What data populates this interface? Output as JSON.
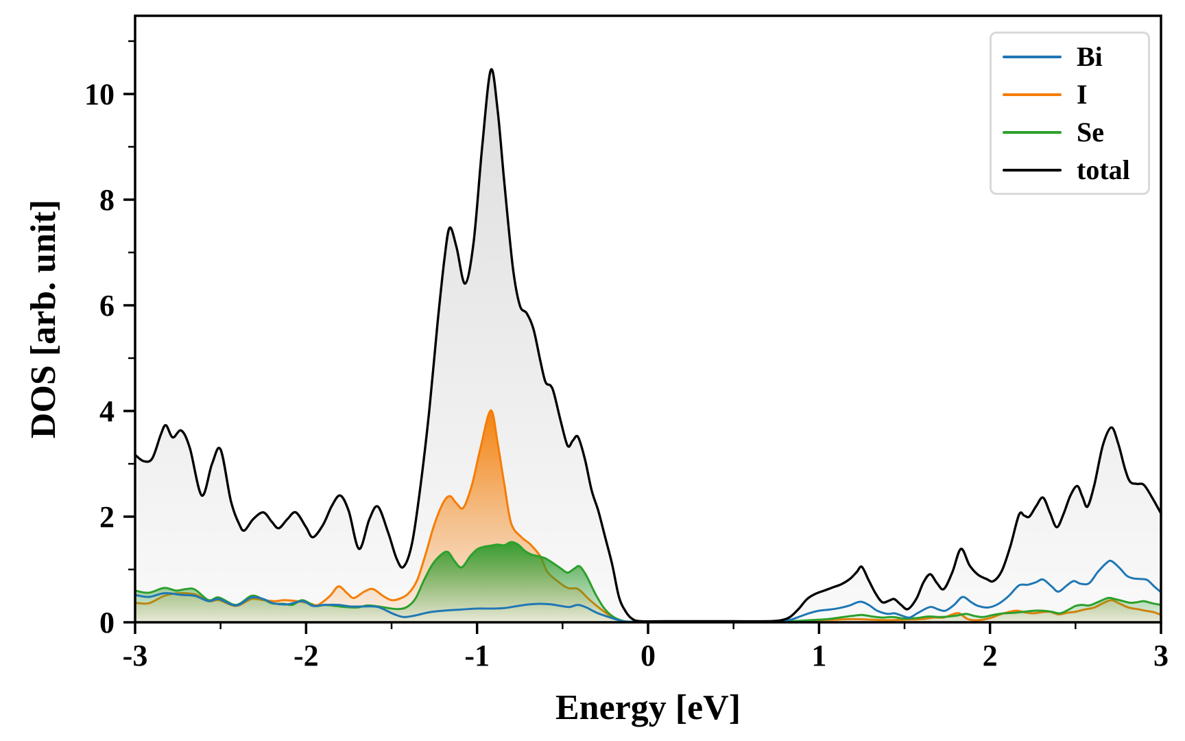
{
  "figure_title": "",
  "axes": {
    "xlabel": "Energy [eV]",
    "ylabel": "DOS [arb. unit]",
    "x_tick_labels": [
      "-3",
      "-2",
      "-1",
      "0",
      "1",
      "2",
      "3"
    ],
    "x_tick_values": [
      -3,
      -2,
      -1,
      0,
      1,
      2,
      3
    ],
    "x_minor_tick_values": [
      -2.5,
      -1.5,
      -0.5,
      0.5,
      1.5,
      2.5
    ],
    "y_tick_labels": [
      "0",
      "2",
      "4",
      "6",
      "8",
      "10"
    ],
    "y_tick_values": [
      0,
      2,
      4,
      6,
      8,
      10
    ],
    "y_minor_tick_values": [
      1,
      3,
      5,
      7,
      9,
      11
    ]
  },
  "legend": {
    "items": [
      {
        "label": "Bi",
        "color": "#1f77b4"
      },
      {
        "label": "I",
        "color": "#f57d05"
      },
      {
        "label": "Se",
        "color": "#2ca02c"
      },
      {
        "label": "total",
        "color": "#000000"
      }
    ]
  },
  "chart_data": {
    "type": "line",
    "title": "",
    "xlabel": "Energy [eV]",
    "ylabel": "DOS [arb. unit]",
    "xlim": [
      -3,
      3
    ],
    "ylim": [
      0,
      11.48
    ],
    "grid": false,
    "legend_position": "upper right",
    "series": [
      {
        "name": "Bi",
        "color": "#1f77b4",
        "fill": false,
        "x": [
          -3.0,
          -2.92,
          -2.83,
          -2.73,
          -2.65,
          -2.57,
          -2.51,
          -2.41,
          -2.32,
          -2.25,
          -2.19,
          -2.11,
          -2.02,
          -1.96,
          -1.89,
          -1.81,
          -1.74,
          -1.66,
          -1.58,
          -1.49,
          -1.43,
          -1.36,
          -1.28,
          -1.2,
          -1.1,
          -1.0,
          -0.92,
          -0.84,
          -0.76,
          -0.69,
          -0.63,
          -0.57,
          -0.51,
          -0.46,
          -0.41,
          -0.36,
          -0.3,
          -0.23,
          -0.16,
          -0.09,
          0.1,
          0.4,
          0.7,
          0.82,
          0.88,
          0.94,
          1.0,
          1.06,
          1.12,
          1.18,
          1.24,
          1.29,
          1.34,
          1.4,
          1.44,
          1.49,
          1.53,
          1.58,
          1.65,
          1.7,
          1.74,
          1.79,
          1.84,
          1.89,
          1.93,
          1.99,
          2.05,
          2.11,
          2.17,
          2.22,
          2.27,
          2.31,
          2.36,
          2.4,
          2.45,
          2.49,
          2.53,
          2.58,
          2.63,
          2.68,
          2.71,
          2.76,
          2.8,
          2.84,
          2.88,
          2.92,
          2.96,
          3.0
        ],
        "y": [
          0.52,
          0.48,
          0.55,
          0.52,
          0.5,
          0.4,
          0.44,
          0.32,
          0.47,
          0.44,
          0.36,
          0.34,
          0.4,
          0.31,
          0.33,
          0.33,
          0.3,
          0.3,
          0.29,
          0.16,
          0.1,
          0.13,
          0.19,
          0.22,
          0.24,
          0.26,
          0.26,
          0.27,
          0.31,
          0.34,
          0.35,
          0.34,
          0.31,
          0.29,
          0.33,
          0.28,
          0.18,
          0.1,
          0.03,
          0.01,
          0.01,
          0.01,
          0.01,
          0.04,
          0.1,
          0.17,
          0.22,
          0.24,
          0.27,
          0.32,
          0.39,
          0.33,
          0.22,
          0.16,
          0.17,
          0.12,
          0.09,
          0.18,
          0.29,
          0.24,
          0.22,
          0.33,
          0.48,
          0.38,
          0.31,
          0.28,
          0.35,
          0.5,
          0.7,
          0.71,
          0.76,
          0.81,
          0.68,
          0.58,
          0.7,
          0.78,
          0.73,
          0.74,
          0.95,
          1.12,
          1.16,
          1.02,
          0.88,
          0.83,
          0.82,
          0.8,
          0.68,
          0.57
        ]
      },
      {
        "name": "I",
        "color": "#f57d05",
        "fill": true,
        "x": [
          -3.0,
          -2.92,
          -2.83,
          -2.75,
          -2.65,
          -2.57,
          -2.51,
          -2.41,
          -2.32,
          -2.25,
          -2.18,
          -2.13,
          -2.05,
          -1.98,
          -1.93,
          -1.86,
          -1.81,
          -1.76,
          -1.72,
          -1.66,
          -1.61,
          -1.55,
          -1.5,
          -1.45,
          -1.4,
          -1.35,
          -1.3,
          -1.25,
          -1.2,
          -1.16,
          -1.12,
          -1.08,
          -1.03,
          -0.98,
          -0.92,
          -0.88,
          -0.84,
          -0.8,
          -0.74,
          -0.69,
          -0.63,
          -0.59,
          -0.53,
          -0.47,
          -0.41,
          -0.35,
          -0.3,
          -0.22,
          -0.14,
          -0.06,
          0.2,
          0.5,
          0.8,
          1.0,
          1.1,
          1.2,
          1.3,
          1.4,
          1.5,
          1.6,
          1.67,
          1.73,
          1.78,
          1.82,
          1.87,
          1.93,
          2.0,
          2.07,
          2.15,
          2.2,
          2.25,
          2.3,
          2.35,
          2.4,
          2.45,
          2.5,
          2.55,
          2.61,
          2.66,
          2.71,
          2.76,
          2.81,
          2.86,
          2.91,
          2.96,
          3.0
        ],
        "y": [
          0.37,
          0.36,
          0.5,
          0.55,
          0.53,
          0.4,
          0.42,
          0.31,
          0.44,
          0.42,
          0.4,
          0.42,
          0.4,
          0.36,
          0.33,
          0.5,
          0.68,
          0.55,
          0.46,
          0.58,
          0.63,
          0.5,
          0.42,
          0.45,
          0.55,
          0.8,
          1.3,
          1.85,
          2.25,
          2.39,
          2.25,
          2.17,
          2.6,
          3.3,
          4.01,
          3.4,
          2.6,
          1.87,
          1.61,
          1.48,
          1.25,
          0.96,
          0.78,
          0.65,
          0.63,
          0.45,
          0.31,
          0.12,
          0.02,
          0.01,
          0.01,
          0.01,
          0.01,
          0.04,
          0.05,
          0.06,
          0.05,
          0.04,
          0.05,
          0.06,
          0.09,
          0.09,
          0.15,
          0.17,
          0.06,
          0.04,
          0.08,
          0.16,
          0.22,
          0.19,
          0.17,
          0.19,
          0.2,
          0.15,
          0.18,
          0.2,
          0.24,
          0.28,
          0.36,
          0.42,
          0.35,
          0.28,
          0.25,
          0.22,
          0.19,
          0.14
        ]
      },
      {
        "name": "Se",
        "color": "#2ca02c",
        "fill": true,
        "x": [
          -3.0,
          -2.92,
          -2.83,
          -2.76,
          -2.7,
          -2.65,
          -2.57,
          -2.51,
          -2.41,
          -2.32,
          -2.26,
          -2.2,
          -2.13,
          -2.08,
          -2.02,
          -1.95,
          -1.89,
          -1.83,
          -1.77,
          -1.7,
          -1.64,
          -1.58,
          -1.52,
          -1.46,
          -1.41,
          -1.36,
          -1.31,
          -1.26,
          -1.21,
          -1.17,
          -1.13,
          -1.09,
          -1.04,
          -1.0,
          -0.96,
          -0.92,
          -0.88,
          -0.84,
          -0.8,
          -0.76,
          -0.72,
          -0.68,
          -0.64,
          -0.6,
          -0.56,
          -0.51,
          -0.47,
          -0.43,
          -0.4,
          -0.36,
          -0.31,
          -0.26,
          -0.21,
          -0.15,
          -0.08,
          0.2,
          0.5,
          0.8,
          0.95,
          1.05,
          1.12,
          1.19,
          1.25,
          1.31,
          1.37,
          1.43,
          1.5,
          1.57,
          1.64,
          1.7,
          1.76,
          1.81,
          1.86,
          1.91,
          1.96,
          2.02,
          2.08,
          2.14,
          2.2,
          2.26,
          2.31,
          2.36,
          2.41,
          2.46,
          2.5,
          2.54,
          2.58,
          2.63,
          2.69,
          2.73,
          2.78,
          2.82,
          2.86,
          2.9,
          2.95,
          3.0
        ],
        "y": [
          0.6,
          0.56,
          0.65,
          0.6,
          0.63,
          0.62,
          0.42,
          0.47,
          0.33,
          0.5,
          0.45,
          0.36,
          0.35,
          0.33,
          0.42,
          0.31,
          0.33,
          0.31,
          0.29,
          0.28,
          0.32,
          0.3,
          0.27,
          0.25,
          0.29,
          0.45,
          0.8,
          1.1,
          1.28,
          1.33,
          1.15,
          1.04,
          1.25,
          1.38,
          1.43,
          1.45,
          1.47,
          1.46,
          1.52,
          1.47,
          1.35,
          1.28,
          1.25,
          1.21,
          1.13,
          1.02,
          0.94,
          1.02,
          1.06,
          0.88,
          0.55,
          0.28,
          0.12,
          0.03,
          0.01,
          0.01,
          0.01,
          0.02,
          0.04,
          0.06,
          0.09,
          0.12,
          0.14,
          0.11,
          0.09,
          0.1,
          0.07,
          0.08,
          0.11,
          0.1,
          0.11,
          0.13,
          0.16,
          0.12,
          0.1,
          0.14,
          0.17,
          0.18,
          0.2,
          0.22,
          0.22,
          0.2,
          0.17,
          0.24,
          0.31,
          0.33,
          0.32,
          0.38,
          0.46,
          0.44,
          0.4,
          0.37,
          0.38,
          0.4,
          0.36,
          0.33
        ]
      },
      {
        "name": "total",
        "color": "#000000",
        "fill": true,
        "x": [
          -3.0,
          -2.95,
          -2.9,
          -2.85,
          -2.82,
          -2.78,
          -2.73,
          -2.68,
          -2.61,
          -2.55,
          -2.5,
          -2.44,
          -2.39,
          -2.36,
          -2.31,
          -2.25,
          -2.2,
          -2.16,
          -2.11,
          -2.06,
          -2.0,
          -1.96,
          -1.9,
          -1.85,
          -1.8,
          -1.75,
          -1.69,
          -1.63,
          -1.58,
          -1.52,
          -1.47,
          -1.43,
          -1.38,
          -1.33,
          -1.28,
          -1.23,
          -1.19,
          -1.16,
          -1.12,
          -1.07,
          -1.02,
          -0.97,
          -0.92,
          -0.88,
          -0.84,
          -0.79,
          -0.75,
          -0.71,
          -0.67,
          -0.63,
          -0.6,
          -0.57,
          -0.55,
          -0.51,
          -0.47,
          -0.44,
          -0.41,
          -0.37,
          -0.33,
          -0.29,
          -0.25,
          -0.21,
          -0.17,
          -0.13,
          -0.09,
          -0.04,
          0.1,
          0.3,
          0.5,
          0.7,
          0.78,
          0.83,
          0.88,
          0.93,
          0.98,
          1.03,
          1.08,
          1.13,
          1.18,
          1.22,
          1.25,
          1.29,
          1.33,
          1.37,
          1.41,
          1.44,
          1.48,
          1.52,
          1.57,
          1.61,
          1.65,
          1.69,
          1.73,
          1.78,
          1.83,
          1.88,
          1.93,
          1.98,
          2.02,
          2.07,
          2.12,
          2.17,
          2.2,
          2.23,
          2.27,
          2.31,
          2.35,
          2.39,
          2.43,
          2.47,
          2.51,
          2.54,
          2.57,
          2.61,
          2.66,
          2.71,
          2.75,
          2.79,
          2.82,
          2.86,
          2.9,
          2.95,
          3.0
        ],
        "y": [
          3.17,
          3.05,
          3.1,
          3.55,
          3.73,
          3.5,
          3.63,
          3.3,
          2.4,
          3.0,
          3.27,
          2.3,
          1.85,
          1.74,
          1.95,
          2.08,
          1.9,
          1.78,
          1.95,
          2.08,
          1.8,
          1.61,
          1.85,
          2.2,
          2.4,
          2.1,
          1.39,
          1.95,
          2.19,
          1.7,
          1.2,
          1.05,
          1.5,
          2.6,
          4.0,
          5.7,
          6.9,
          7.47,
          7.1,
          6.41,
          7.2,
          9.0,
          10.45,
          9.7,
          8.3,
          6.7,
          6.0,
          5.85,
          5.55,
          4.95,
          4.55,
          4.48,
          4.33,
          3.8,
          3.34,
          3.44,
          3.51,
          3.1,
          2.5,
          2.1,
          1.6,
          1.1,
          0.48,
          0.2,
          0.06,
          0.02,
          0.02,
          0.02,
          0.02,
          0.02,
          0.04,
          0.1,
          0.25,
          0.44,
          0.54,
          0.6,
          0.66,
          0.72,
          0.82,
          0.95,
          1.05,
          0.8,
          0.55,
          0.38,
          0.41,
          0.44,
          0.33,
          0.25,
          0.45,
          0.75,
          0.91,
          0.74,
          0.63,
          0.95,
          1.39,
          1.08,
          0.9,
          0.82,
          0.78,
          0.98,
          1.45,
          2.04,
          2.02,
          2.0,
          2.2,
          2.36,
          2.08,
          1.8,
          2.05,
          2.4,
          2.58,
          2.38,
          2.19,
          2.6,
          3.35,
          3.69,
          3.38,
          2.9,
          2.66,
          2.62,
          2.6,
          2.35,
          2.06
        ]
      }
    ]
  }
}
